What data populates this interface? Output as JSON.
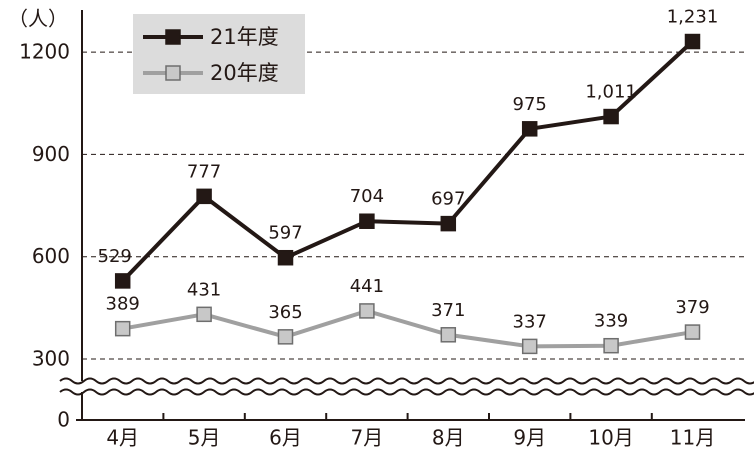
{
  "chart_data": {
    "type": "line",
    "unit_label": "（人）",
    "categories": [
      "4月",
      "5月",
      "6月",
      "7月",
      "8月",
      "9月",
      "10月",
      "11月"
    ],
    "series": [
      {
        "name": "21年度",
        "color": "#231815",
        "values": [
          529,
          777,
          597,
          704,
          697,
          975,
          1011,
          1231
        ],
        "value_labels": [
          "529",
          "777",
          "597",
          "704",
          "697",
          "975",
          "1,011",
          "1,231"
        ]
      },
      {
        "name": "20年度",
        "color": "#a0a0a0",
        "values": [
          389,
          431,
          365,
          441,
          371,
          337,
          339,
          379
        ]
      }
    ],
    "ylim": [
      0,
      1300
    ],
    "yticks": [
      0,
      300,
      600,
      900,
      1200
    ],
    "grid": true,
    "axis_break": true,
    "legend": "upper left"
  }
}
